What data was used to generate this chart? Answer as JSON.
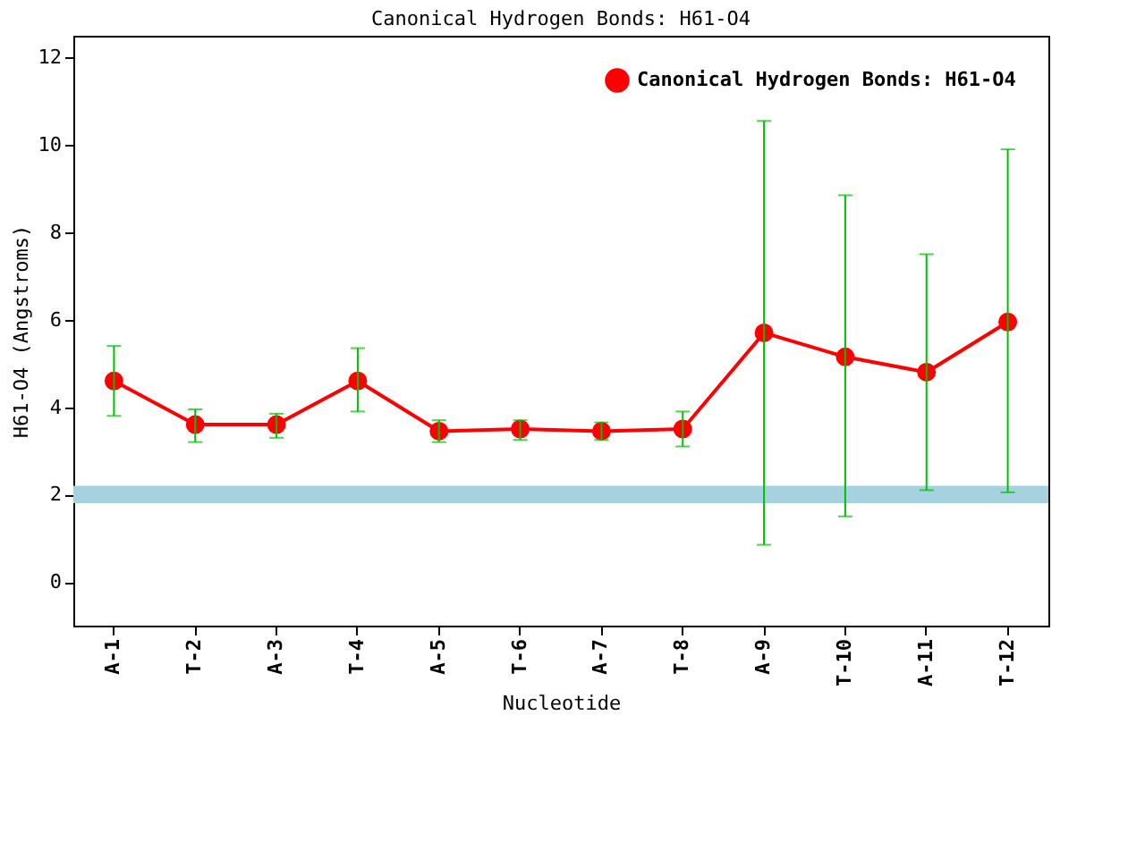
{
  "chart_data": {
    "type": "line",
    "title": "Canonical Hydrogen Bonds: H61-O4",
    "xlabel": "Nucleotide",
    "ylabel": "H61-O4 (Angstroms)",
    "categories": [
      "A-1",
      "T-2",
      "A-3",
      "T-4",
      "A-5",
      "T-6",
      "A-7",
      "T-8",
      "A-9",
      "T-10",
      "A-11",
      "T-12"
    ],
    "series": [
      {
        "name": "Canonical Hydrogen Bonds: H61-O4",
        "color": "#ff0000",
        "values": [
          4.6,
          3.6,
          3.6,
          4.6,
          3.45,
          3.5,
          3.45,
          3.5,
          5.7,
          5.15,
          4.8,
          5.95
        ],
        "errors": [
          [
            3.8,
            5.4
          ],
          [
            3.2,
            3.95
          ],
          [
            3.3,
            3.85
          ],
          [
            3.9,
            5.35
          ],
          [
            3.2,
            3.7
          ],
          [
            3.25,
            3.7
          ],
          [
            3.25,
            3.65
          ],
          [
            3.1,
            3.9
          ],
          [
            0.85,
            10.55
          ],
          [
            1.5,
            8.85
          ],
          [
            2.1,
            7.5
          ],
          [
            2.05,
            9.9
          ]
        ]
      }
    ],
    "ylim": [
      -1,
      12.5
    ],
    "yticks": [
      0,
      2,
      4,
      6,
      8,
      10,
      12
    ],
    "bands": [
      {
        "axis": "y",
        "from": 1.8,
        "to": 2.2,
        "color": "#a6d2e0"
      }
    ],
    "marker": "circle",
    "line_style": "solid",
    "legend": "top right",
    "grid": false
  }
}
